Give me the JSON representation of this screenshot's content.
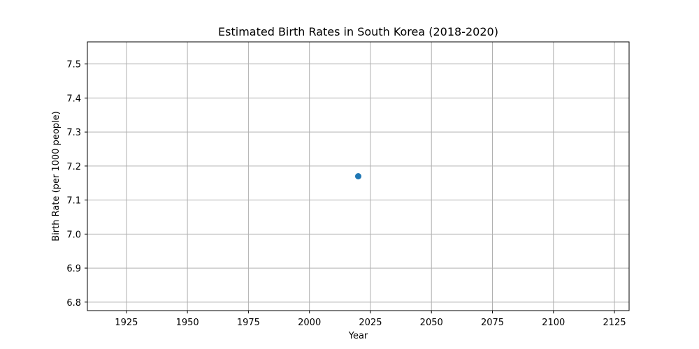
{
  "chart_data": {
    "type": "scatter",
    "title": "Estimated Birth Rates in South Korea (2018-2020)",
    "xlabel": "Year",
    "ylabel": "Birth Rate (per 1000 people)",
    "xlim": [
      1909,
      2131
    ],
    "ylim": [
      6.775,
      7.565
    ],
    "xticks": [
      1925,
      1950,
      1975,
      2000,
      2025,
      2050,
      2075,
      2100,
      2125
    ],
    "yticks": [
      6.8,
      6.9,
      7.0,
      7.1,
      7.2,
      7.3,
      7.4,
      7.5
    ],
    "xtick_labels": [
      "1925",
      "1950",
      "1975",
      "2000",
      "2025",
      "2050",
      "2075",
      "2100",
      "2125"
    ],
    "ytick_labels": [
      "6.8",
      "6.9",
      "7.0",
      "7.1",
      "7.2",
      "7.3",
      "7.4",
      "7.5"
    ],
    "grid": true,
    "series": [
      {
        "x": [
          2020
        ],
        "y": [
          7.17
        ],
        "color": "#1f77b4"
      }
    ]
  }
}
